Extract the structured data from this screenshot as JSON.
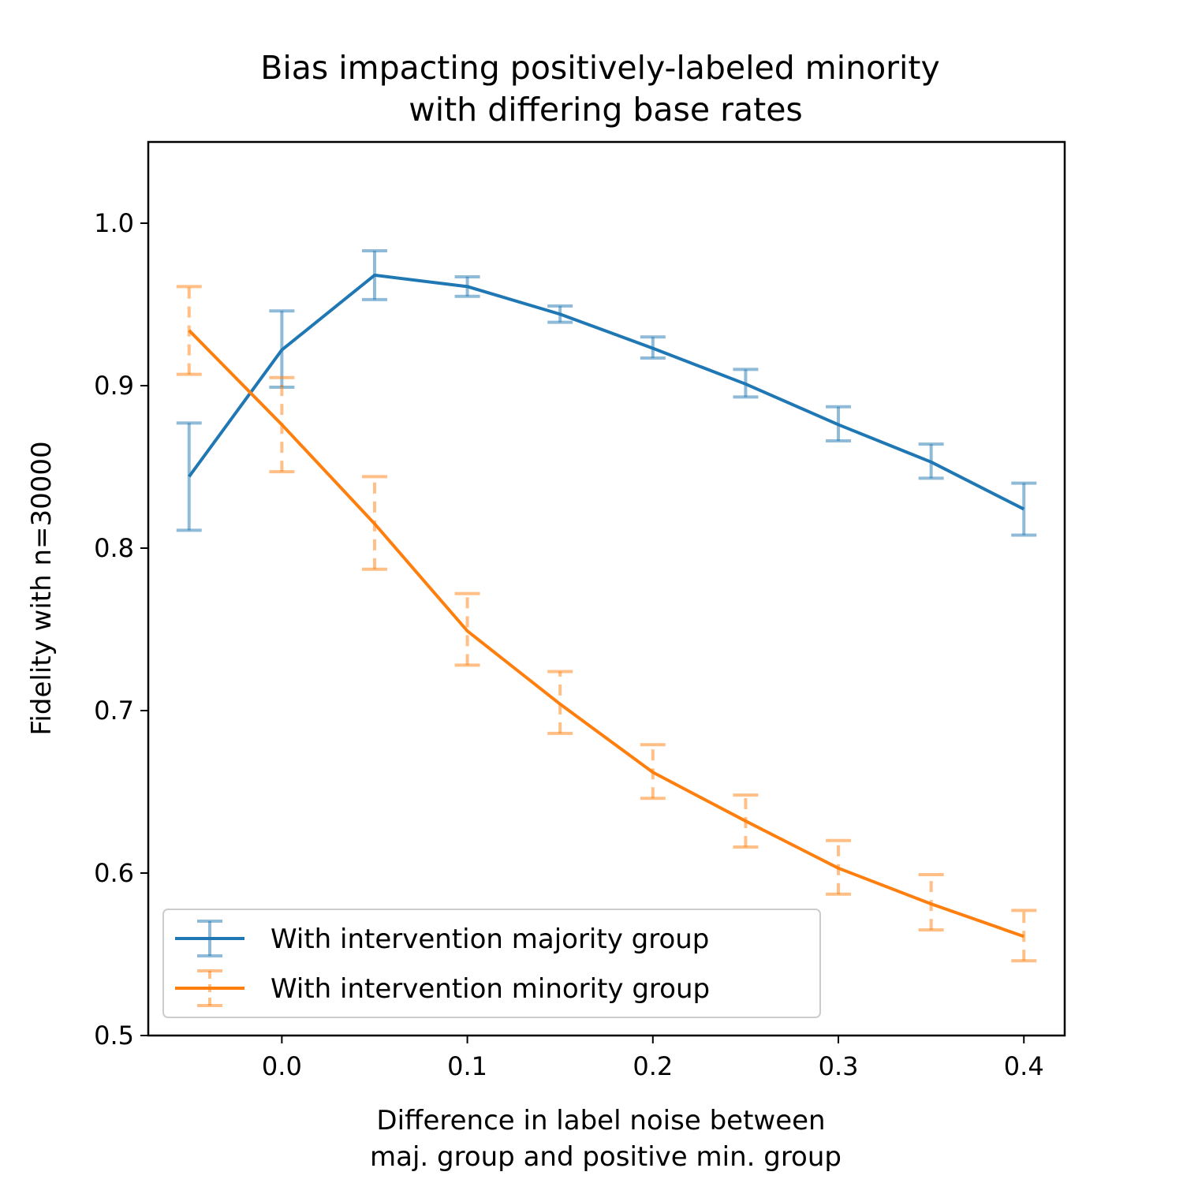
{
  "chart_data": {
    "type": "line",
    "title_lines": [
      "Bias impacting positively-labeled minority",
      "with differing base rates"
    ],
    "xlabel_lines": [
      "Difference in label noise between",
      "maj. group and positive min. group"
    ],
    "ylabel": "Fidelity with n=30000",
    "xlim": [
      -0.072,
      0.422
    ],
    "ylim": [
      0.5,
      1.05
    ],
    "xticks": [
      0.0,
      0.1,
      0.2,
      0.3,
      0.4
    ],
    "xtick_labels": [
      "0.0",
      "0.1",
      "0.2",
      "0.3",
      "0.4"
    ],
    "yticks": [
      0.5,
      0.6,
      0.7,
      0.8,
      0.9,
      1.0
    ],
    "ytick_labels": [
      "0.5",
      "0.6",
      "0.7",
      "0.8",
      "0.9",
      "1.0"
    ],
    "grid": false,
    "legend_position": "lower-left",
    "x": [
      -0.05,
      0.0,
      0.05,
      0.1,
      0.15,
      0.2,
      0.25,
      0.3,
      0.35,
      0.4
    ],
    "series": [
      {
        "name": "With intervention majority group",
        "color": "#1f77b4",
        "values": [
          0.844,
          0.922,
          0.968,
          0.961,
          0.944,
          0.923,
          0.901,
          0.876,
          0.853,
          0.824
        ],
        "err_low": [
          0.811,
          0.899,
          0.953,
          0.955,
          0.939,
          0.917,
          0.893,
          0.866,
          0.843,
          0.808
        ],
        "err_high": [
          0.877,
          0.946,
          0.983,
          0.967,
          0.949,
          0.93,
          0.91,
          0.887,
          0.864,
          0.84
        ],
        "error_style": "solid"
      },
      {
        "name": "With intervention minority group",
        "color": "#ff7f0e",
        "values": [
          0.934,
          0.876,
          0.815,
          0.749,
          0.704,
          0.662,
          0.632,
          0.603,
          0.581,
          0.561
        ],
        "err_low": [
          0.907,
          0.847,
          0.787,
          0.728,
          0.686,
          0.646,
          0.616,
          0.587,
          0.565,
          0.546
        ],
        "err_high": [
          0.961,
          0.905,
          0.844,
          0.772,
          0.724,
          0.679,
          0.648,
          0.62,
          0.599,
          0.577
        ],
        "error_style": "dashed"
      }
    ]
  }
}
